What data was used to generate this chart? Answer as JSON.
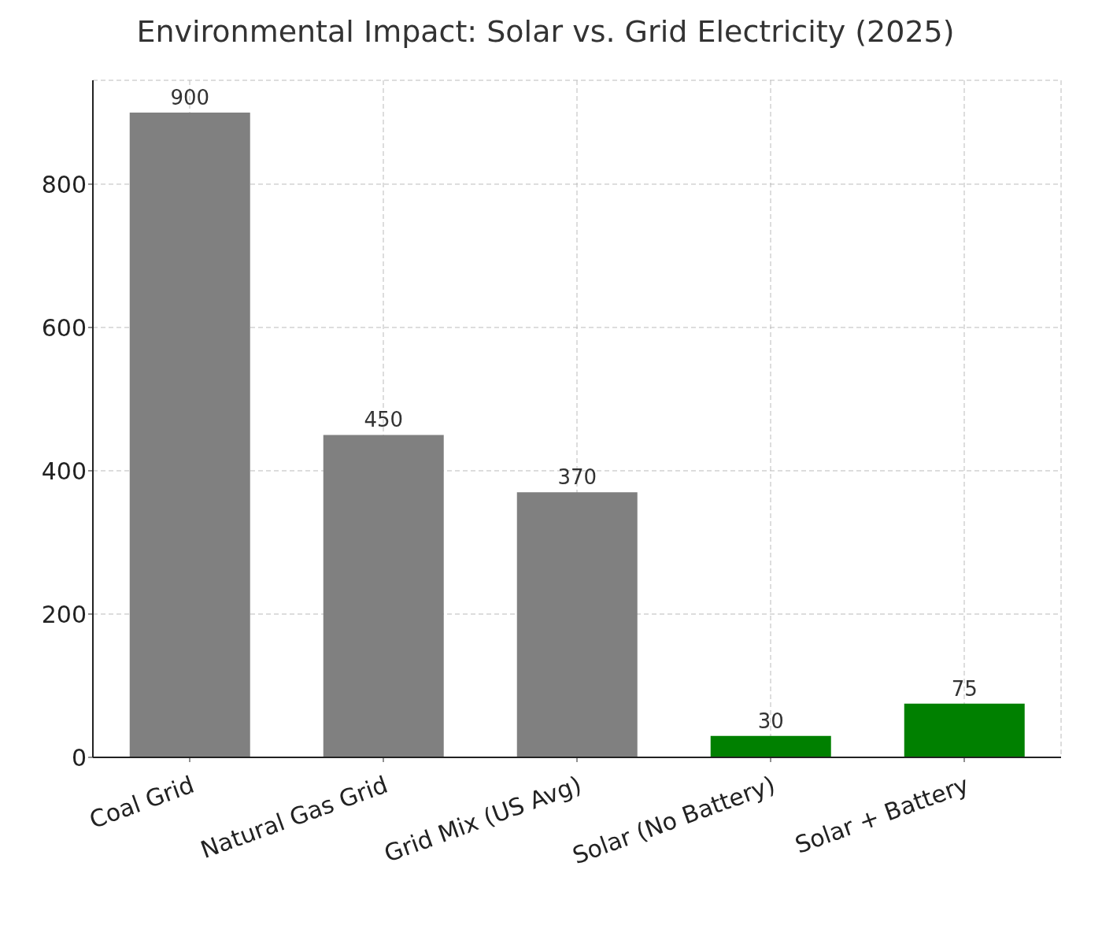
{
  "chart_data": {
    "type": "bar",
    "title": "Environmental Impact: Solar vs. Grid Electricity (2025)",
    "categories": [
      "Coal Grid",
      "Natural Gas Grid",
      "Grid Mix (US Avg)",
      "Solar (No Battery)",
      "Solar + Battery"
    ],
    "values": [
      900,
      450,
      370,
      30,
      75
    ],
    "colors": [
      "#808080",
      "#808080",
      "#808080",
      "#008000",
      "#008000"
    ],
    "ylim": [
      0,
      945
    ],
    "yticks": [
      0,
      200,
      400,
      600,
      800
    ],
    "grid": true,
    "data_labels": true
  }
}
